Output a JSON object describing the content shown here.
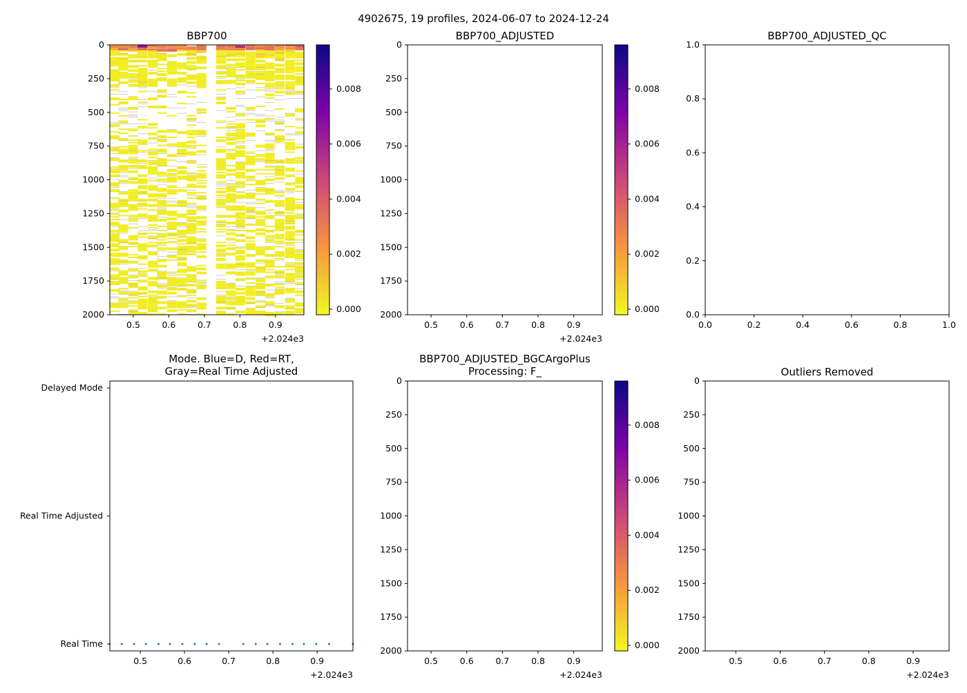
{
  "figure_title": "4902675, 19 profiles, 2024-06-07 to 2024-12-24",
  "colors": {
    "bg": "#ffffff",
    "missing": "#b0b0b0",
    "dot": "#1f77b4",
    "cmap": [
      "#f0f921",
      "#f89540",
      "#cc4778",
      "#7e03a8",
      "#0d0887"
    ]
  },
  "chart_data": [
    {
      "id": "bbp700",
      "type": "heatmap",
      "title": "BBP700",
      "xlim": [
        0.434,
        0.98
      ],
      "ylim": [
        2000,
        0
      ],
      "xticks": [
        "0.5",
        "0.6",
        "0.7",
        "0.8",
        "0.9"
      ],
      "x_offset_label": "+2.024e3",
      "yticks": [
        "0",
        "250",
        "500",
        "750",
        "1000",
        "1250",
        "1500",
        "1750",
        "2000"
      ],
      "colorbar": {
        "range": [
          -0.0002,
          0.0096
        ],
        "ticks": [
          "0.000",
          "0.002",
          "0.004",
          "0.006",
          "0.008"
        ]
      },
      "profile_times": [
        0.434,
        0.458,
        0.486,
        0.5125,
        0.541,
        0.567,
        0.595,
        0.623,
        0.65,
        0.678,
        0.733,
        0.761,
        0.7875,
        0.816,
        0.844,
        0.87,
        0.898,
        0.927,
        0.955
      ],
      "surface_value_range": [
        0.0015,
        0.004
      ],
      "deep_value": 0.0002,
      "max_value": 0.0095
    },
    {
      "id": "bbp700-adjusted",
      "type": "heatmap",
      "title": "BBP700_ADJUSTED",
      "xlim": [
        0.434,
        0.98
      ],
      "ylim": [
        2000,
        0
      ],
      "xticks": [
        "0.5",
        "0.6",
        "0.7",
        "0.8",
        "0.9"
      ],
      "x_offset_label": "+2.024e3",
      "yticks": [
        "0",
        "250",
        "500",
        "750",
        "1000",
        "1250",
        "1500",
        "1750",
        "2000"
      ],
      "colorbar": {
        "range": [
          -0.0002,
          0.0096
        ],
        "ticks": [
          "0.000",
          "0.002",
          "0.004",
          "0.006",
          "0.008"
        ]
      }
    },
    {
      "id": "bbp700-adjusted-qc",
      "type": "heatmap",
      "title": "BBP700_ADJUSTED_QC",
      "xlim": [
        0,
        1
      ],
      "ylim": [
        0,
        1
      ],
      "xticks": [
        "0.0",
        "0.2",
        "0.4",
        "0.6",
        "0.8",
        "1.0"
      ],
      "yticks": [
        "0.0",
        "0.2",
        "0.4",
        "0.6",
        "0.8",
        "1.0"
      ]
    },
    {
      "id": "mode",
      "type": "scatter",
      "title_lines": [
        "Mode. Blue=D, Red=RT,",
        "Gray=Real Time Adjusted"
      ],
      "xlim": [
        0.431,
        0.981
      ],
      "xticks": [
        "0.5",
        "0.6",
        "0.7",
        "0.8",
        "0.9"
      ],
      "x_offset_label": "+2.024e3",
      "ycategories": [
        "Real Time",
        "Real Time Adjusted",
        "Delayed Mode"
      ],
      "points_x": [
        0.431,
        0.458,
        0.486,
        0.5125,
        0.541,
        0.567,
        0.595,
        0.623,
        0.65,
        0.678,
        0.733,
        0.761,
        0.7875,
        0.816,
        0.844,
        0.87,
        0.898,
        0.927,
        0.981
      ],
      "points_y": "Real Time"
    },
    {
      "id": "bgcargoplus",
      "type": "heatmap",
      "title_lines": [
        "BBP700_ADJUSTED_BGCArgoPlus",
        "Processing: F_"
      ],
      "xlim": [
        0.434,
        0.98
      ],
      "ylim": [
        2000,
        0
      ],
      "xticks": [
        "0.5",
        "0.6",
        "0.7",
        "0.8",
        "0.9"
      ],
      "x_offset_label": "+2.024e3",
      "yticks": [
        "0",
        "250",
        "500",
        "750",
        "1000",
        "1250",
        "1500",
        "1750",
        "2000"
      ],
      "colorbar": {
        "range": [
          -0.0002,
          0.0096
        ],
        "ticks": [
          "0.000",
          "0.002",
          "0.004",
          "0.006",
          "0.008"
        ]
      }
    },
    {
      "id": "outliers",
      "type": "heatmap",
      "title": "Outliers Removed",
      "xlim": [
        0.431,
        0.981
      ],
      "ylim": [
        2000,
        0
      ],
      "xticks": [
        "0.5",
        "0.6",
        "0.7",
        "0.8",
        "0.9"
      ],
      "x_offset_label": "+2.024e3",
      "yticks": [
        "0",
        "250",
        "500",
        "750",
        "1000",
        "1250",
        "1500",
        "1750",
        "2000"
      ]
    }
  ]
}
